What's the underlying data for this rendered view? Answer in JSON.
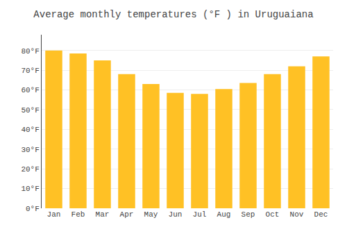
{
  "chart_data": {
    "type": "bar",
    "title": "Average monthly temperatures (°F ) in Uruguaiana",
    "categories": [
      "Jan",
      "Feb",
      "Mar",
      "Apr",
      "May",
      "Jun",
      "Jul",
      "Aug",
      "Sep",
      "Oct",
      "Nov",
      "Dec"
    ],
    "values": [
      80,
      78.5,
      75,
      68,
      63,
      58.5,
      58,
      60.5,
      63.5,
      68,
      72,
      77
    ],
    "color": "#FFC125",
    "ylim": [
      0,
      88
    ],
    "yticks": [
      {
        "value": 0,
        "label": "0°F"
      },
      {
        "value": 10,
        "label": "10°F"
      },
      {
        "value": 20,
        "label": "20°F"
      },
      {
        "value": 30,
        "label": "30°F"
      },
      {
        "value": 40,
        "label": "40°F"
      },
      {
        "value": 50,
        "label": "50°F"
      },
      {
        "value": 60,
        "label": "60°F"
      },
      {
        "value": 70,
        "label": "70°F"
      },
      {
        "value": 80,
        "label": "80°F"
      }
    ],
    "grid": true
  }
}
